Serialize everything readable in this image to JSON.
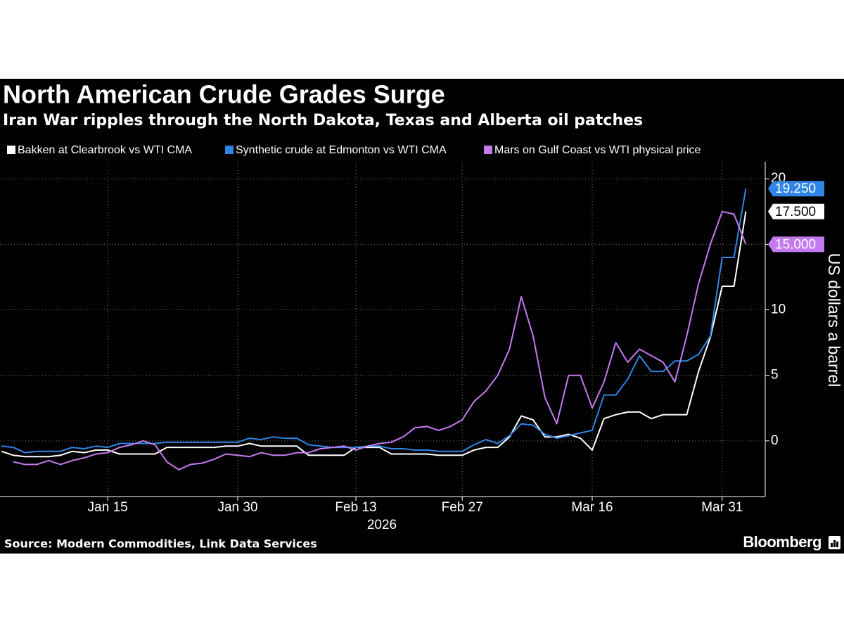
{
  "chart_data": {
    "type": "line",
    "title": "North American Crude Grades Surge",
    "subtitle": "Iran War ripples through the North Dakota, Texas and Alberta oil patches",
    "ylabel": "US dollars a barrel",
    "xlabel": "2026",
    "source": "Source: Modern Commodities, Link Data Services",
    "brand": "Bloomberg",
    "grid": true,
    "y_axis_side": "right",
    "ylim": [
      -4.25,
      21.3
    ],
    "yticks": [
      0,
      5,
      10,
      15,
      20
    ],
    "categories": [
      null,
      null,
      null,
      null,
      null,
      null,
      null,
      null,
      null,
      "Jan 15",
      null,
      null,
      null,
      null,
      null,
      null,
      null,
      null,
      null,
      null,
      "Jan 30",
      null,
      null,
      null,
      null,
      null,
      null,
      null,
      null,
      null,
      "Feb 13",
      null,
      null,
      null,
      null,
      null,
      null,
      null,
      null,
      "Feb 27",
      null,
      null,
      null,
      null,
      null,
      null,
      null,
      null,
      null,
      null,
      "Mar 16",
      null,
      null,
      null,
      null,
      null,
      null,
      null,
      null,
      null,
      null,
      "Mar 31",
      null,
      null
    ],
    "series": [
      {
        "name": "Bakken at Clearbrook vs WTI CMA",
        "color": "#ffffff",
        "values": [
          -0.8,
          -1.1,
          -1.2,
          -1.2,
          -1.2,
          -1.1,
          -0.8,
          -0.9,
          -0.7,
          -0.7,
          -1.0,
          -1.0,
          -1.0,
          -1.0,
          -0.5,
          -0.5,
          -0.5,
          -0.5,
          -0.5,
          -0.4,
          -0.4,
          -0.2,
          -0.4,
          -0.4,
          -0.4,
          -0.4,
          -1.1,
          -1.1,
          -1.1,
          -1.1,
          -0.5,
          -0.5,
          -0.5,
          -1.0,
          -1.0,
          -1.0,
          -1.0,
          -1.1,
          -1.1,
          -1.1,
          -0.7,
          -0.5,
          -0.5,
          0.3,
          1.9,
          1.6,
          0.3,
          0.3,
          0.5,
          0.2,
          -0.7,
          1.7,
          2.0,
          2.2,
          2.2,
          1.7,
          2.0,
          2.0,
          2.0,
          5.3,
          7.9,
          11.8,
          11.8,
          17.5
        ],
        "value_labels": [
          null,
          null,
          null,
          null,
          null,
          null,
          null,
          null,
          null,
          null,
          null,
          null,
          null,
          null,
          null,
          null,
          null,
          null,
          null,
          null,
          null,
          null,
          null,
          null,
          null,
          null,
          null,
          null,
          null,
          null,
          null,
          null,
          null,
          null,
          null,
          null,
          null,
          null,
          null,
          null,
          null,
          null,
          null,
          null,
          null,
          null,
          null,
          null,
          null,
          null,
          null,
          null,
          null,
          null,
          null,
          null,
          null,
          null,
          null,
          null,
          null,
          null,
          null,
          "17.500"
        ]
      },
      {
        "name": "Synthetic crude at Edmonton vs WTI CMA",
        "color": "#2f86e6",
        "values": [
          -0.4,
          -0.5,
          -0.9,
          -0.8,
          -0.8,
          -0.8,
          -0.5,
          -0.6,
          -0.4,
          -0.5,
          -0.2,
          -0.2,
          -0.2,
          -0.2,
          -0.1,
          -0.1,
          -0.1,
          -0.1,
          -0.1,
          -0.1,
          -0.1,
          0.2,
          0.1,
          0.3,
          0.2,
          0.2,
          -0.3,
          -0.4,
          -0.5,
          -0.5,
          -0.5,
          -0.4,
          -0.4,
          -0.6,
          -0.6,
          -0.7,
          -0.7,
          -0.8,
          -0.8,
          -0.8,
          -0.3,
          0.1,
          -0.2,
          0.4,
          1.3,
          1.2,
          0.5,
          0.2,
          0.4,
          0.6,
          0.8,
          3.5,
          3.5,
          4.7,
          6.5,
          5.3,
          5.3,
          6.1,
          6.1,
          6.6,
          8.0,
          14.0,
          14.0,
          19.25
        ],
        "value_labels": [
          null,
          null,
          null,
          null,
          null,
          null,
          null,
          null,
          null,
          null,
          null,
          null,
          null,
          null,
          null,
          null,
          null,
          null,
          null,
          null,
          null,
          null,
          null,
          null,
          null,
          null,
          null,
          null,
          null,
          null,
          null,
          null,
          null,
          null,
          null,
          null,
          null,
          null,
          null,
          null,
          null,
          null,
          null,
          null,
          null,
          null,
          null,
          null,
          null,
          null,
          null,
          null,
          null,
          null,
          null,
          null,
          null,
          null,
          null,
          null,
          null,
          null,
          null,
          "19.250"
        ]
      },
      {
        "name": "Mars on Gulf Coast vs WTI physical price",
        "color": "#c57bf0",
        "values": [
          null,
          -1.6,
          -1.8,
          -1.8,
          -1.5,
          -1.8,
          -1.5,
          -1.3,
          -1.0,
          -0.9,
          -0.5,
          -0.3,
          0.0,
          -0.3,
          -1.6,
          -2.2,
          -1.8,
          -1.7,
          -1.4,
          -1.0,
          -1.1,
          -1.2,
          -0.9,
          -1.1,
          -1.1,
          -0.9,
          -0.9,
          -0.6,
          -0.5,
          -0.4,
          -0.7,
          -0.4,
          -0.2,
          -0.1,
          0.3,
          1.0,
          1.1,
          0.8,
          1.1,
          1.6,
          3.0,
          3.8,
          5.0,
          7.0,
          11.0,
          8.0,
          3.3,
          1.3,
          5.0,
          5.0,
          2.5,
          4.5,
          7.5,
          6.0,
          7.0,
          6.5,
          6.0,
          4.5,
          8.0,
          12.0,
          15.0,
          17.5,
          17.3,
          15.0
        ],
        "value_labels": [
          null,
          null,
          null,
          null,
          null,
          null,
          null,
          null,
          null,
          null,
          null,
          null,
          null,
          null,
          null,
          null,
          null,
          null,
          null,
          null,
          null,
          null,
          null,
          null,
          null,
          null,
          null,
          null,
          null,
          null,
          null,
          null,
          null,
          null,
          null,
          null,
          null,
          null,
          null,
          null,
          null,
          null,
          null,
          null,
          null,
          null,
          null,
          null,
          null,
          null,
          null,
          null,
          null,
          null,
          null,
          null,
          null,
          null,
          null,
          null,
          null,
          null,
          null,
          "15.000"
        ]
      }
    ]
  }
}
